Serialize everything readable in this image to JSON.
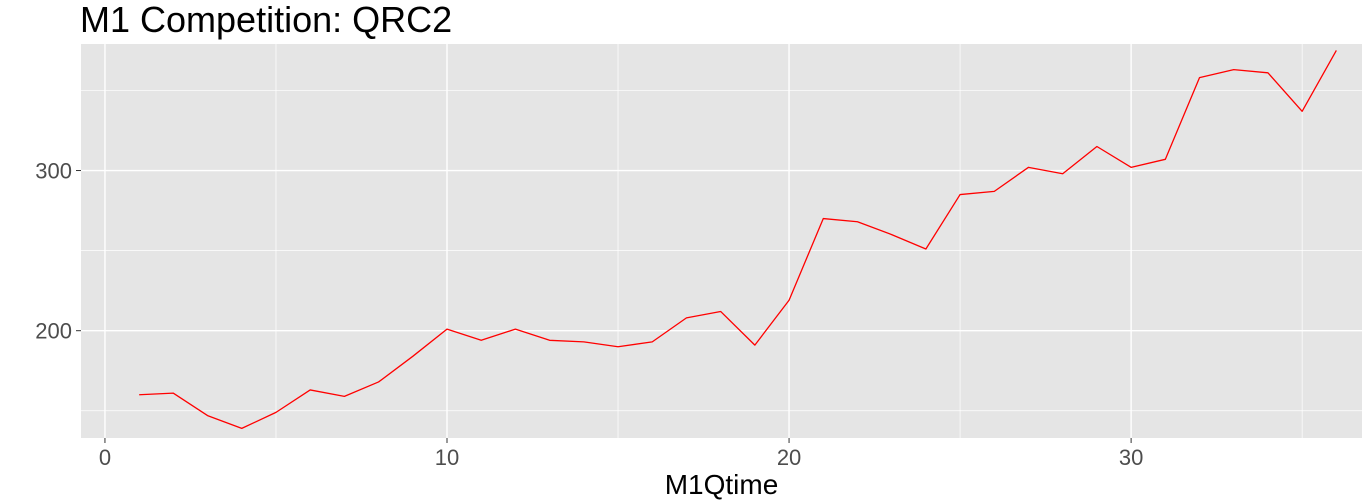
{
  "chart_data": {
    "type": "line",
    "title": "M1 Competition: QRC2",
    "xlabel": "M1Qtime",
    "ylabel": "",
    "xlim": [
      -0.7,
      36.75
    ],
    "ylim": [
      133,
      379
    ],
    "x_ticks": [
      0,
      10,
      20,
      30
    ],
    "y_ticks": [
      200,
      300
    ],
    "x_tick_labels": [
      "0",
      "10",
      "20",
      "30"
    ],
    "y_tick_labels": [
      "200",
      "300"
    ],
    "grid": true,
    "legend": "none",
    "colors": {
      "panel": "#e5e5e5",
      "grid": "#ffffff",
      "line": "#ff0000"
    },
    "series": [
      {
        "x": [
          1,
          2,
          3,
          4,
          5,
          6,
          7,
          8,
          9,
          10,
          11,
          12,
          13,
          14,
          15,
          16,
          17,
          18,
          19,
          20,
          21,
          22,
          23,
          24,
          25,
          26,
          27,
          28,
          29,
          30,
          31,
          32,
          33,
          34,
          35,
          36
        ],
        "values": [
          160,
          161,
          147,
          139,
          149,
          163,
          159,
          168,
          184,
          201,
          194,
          201,
          194,
          193,
          190,
          193,
          208,
          212,
          191,
          219,
          270,
          268,
          260,
          251,
          285,
          287,
          302,
          298,
          315,
          302,
          307,
          358,
          363,
          361,
          337,
          375
        ]
      }
    ]
  }
}
